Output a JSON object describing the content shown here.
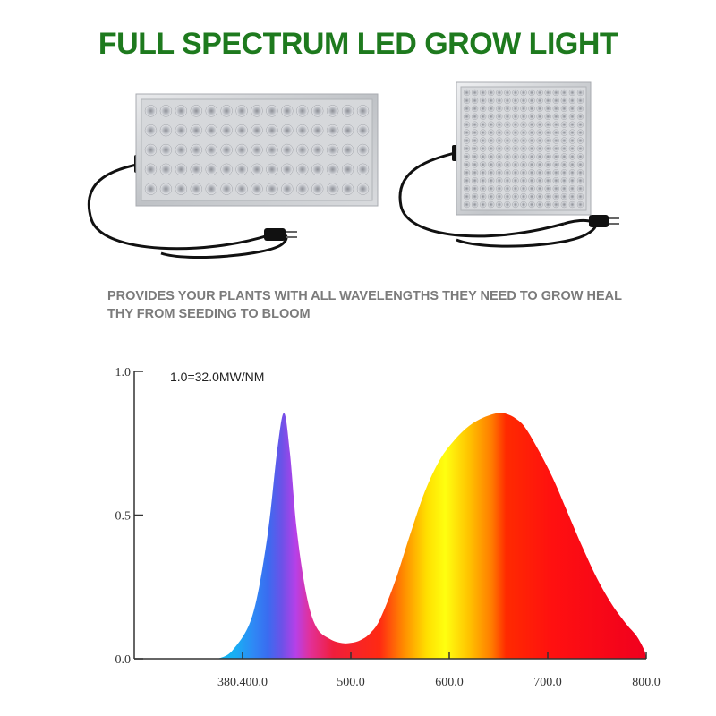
{
  "title": "FULL SPECTRUM LED GROW LIGHT",
  "caption": {
    "line1": "PROVIDES YOUR PLANTS WITH ALL WAVELENGTHS THEY NEED TO GROW HEAL",
    "line2": "THY FROM SEEDING TO BLOOM"
  },
  "colors": {
    "title": "#1e7a1e",
    "caption": "#7b7b7b",
    "axis": "#333333"
  },
  "products": [
    {
      "name": "rectangular-led-panel",
      "led_rows": 5,
      "led_cols": 15
    },
    {
      "name": "square-led-panel",
      "led_rows": 15,
      "led_cols": 15
    }
  ],
  "chart_data": {
    "type": "area",
    "annotation": "1.0=32.0MW/NM",
    "yticks": [
      "0.0",
      "0.5",
      "1.0"
    ],
    "xticks": [
      {
        "label": "380.400.0",
        "value": 390
      },
      {
        "label": "500.0",
        "value": 500
      },
      {
        "label": "600.0",
        "value": 600
      },
      {
        "label": "700.0",
        "value": 700
      },
      {
        "label": "800.0",
        "value": 800
      }
    ],
    "xlim": [
      280,
      800
    ],
    "ylim": [
      0,
      1.0
    ],
    "series": [
      {
        "x": [
          365,
          380,
          400,
          415,
          425,
          432,
          438,
          445,
          455,
          465,
          478,
          490,
          500,
          510,
          520,
          530,
          545,
          560,
          575,
          590,
          605,
          620,
          635,
          650,
          660,
          670,
          678,
          690,
          705,
          720,
          735,
          750,
          765,
          780,
          790,
          798,
          800
        ],
        "y": [
          0.0,
          0.03,
          0.15,
          0.42,
          0.72,
          0.855,
          0.72,
          0.45,
          0.22,
          0.11,
          0.07,
          0.055,
          0.055,
          0.065,
          0.09,
          0.14,
          0.27,
          0.43,
          0.58,
          0.69,
          0.76,
          0.81,
          0.84,
          0.855,
          0.85,
          0.83,
          0.8,
          0.73,
          0.63,
          0.51,
          0.39,
          0.28,
          0.19,
          0.12,
          0.08,
          0.03,
          0.0
        ]
      }
    ]
  }
}
